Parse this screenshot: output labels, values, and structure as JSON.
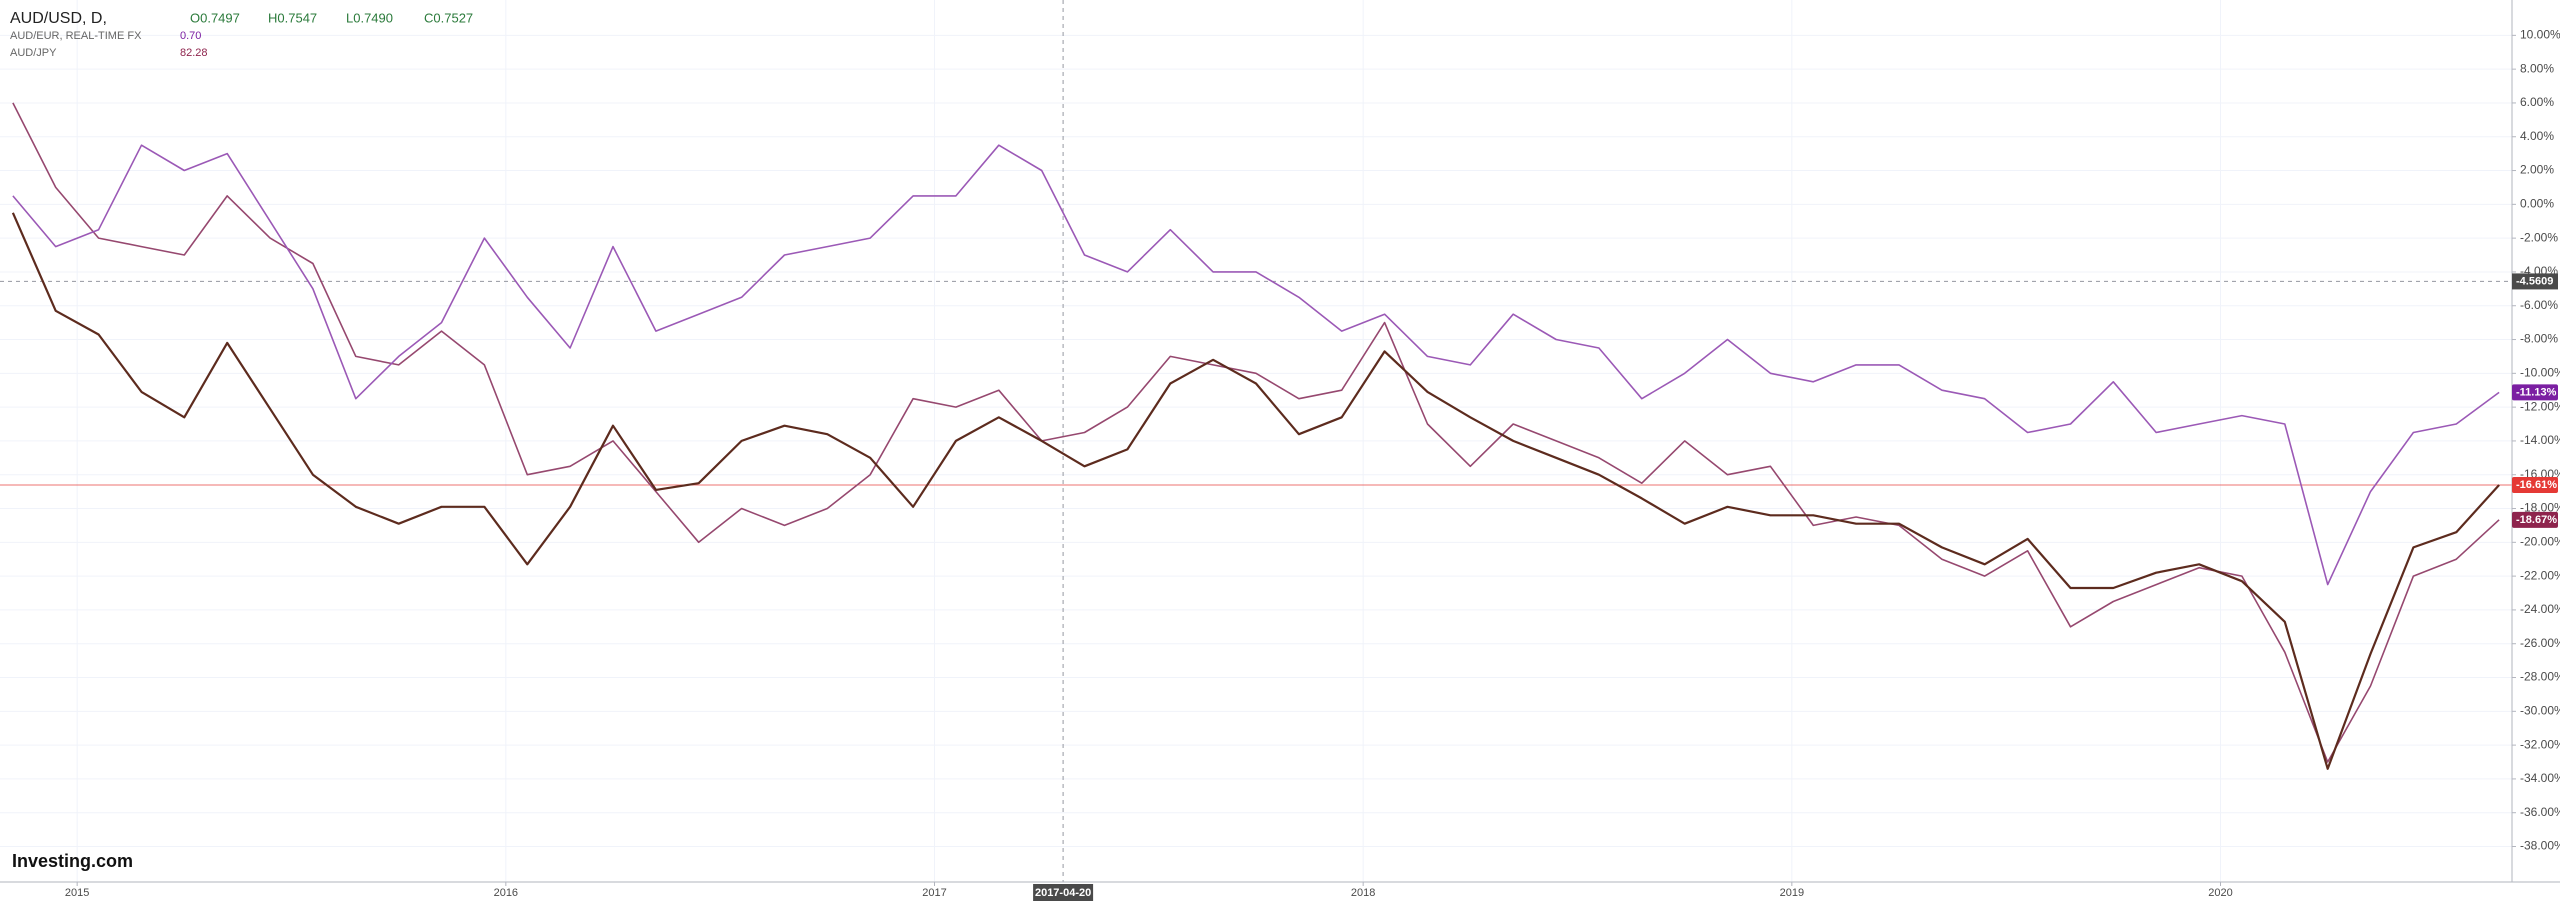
{
  "chart_data": {
    "type": "line",
    "ohlc": [
      "O0.7497",
      "H0.7547",
      "L0.7490",
      "C0.7527"
    ],
    "logo": "Investing.com",
    "x": [
      2014.85,
      2014.95,
      2015.05,
      2015.15,
      2015.25,
      2015.35,
      2015.45,
      2015.55,
      2015.65,
      2015.75,
      2015.85,
      2015.95,
      2016.05,
      2016.15,
      2016.25,
      2016.35,
      2016.45,
      2016.55,
      2016.65,
      2016.75,
      2016.85,
      2016.95,
      2017.05,
      2017.15,
      2017.25,
      2017.35,
      2017.45,
      2017.55,
      2017.65,
      2017.75,
      2017.85,
      2017.95,
      2018.05,
      2018.15,
      2018.25,
      2018.35,
      2018.45,
      2018.55,
      2018.65,
      2018.75,
      2018.85,
      2018.95,
      2019.05,
      2019.15,
      2019.25,
      2019.35,
      2019.45,
      2019.55,
      2019.65,
      2019.75,
      2019.85,
      2019.95,
      2020.05,
      2020.15,
      2020.25,
      2020.35,
      2020.45,
      2020.55,
      2020.65
    ],
    "xlim": [
      2014.82,
      2020.68
    ],
    "xticks": [
      2015,
      2016,
      2017,
      2018,
      2019,
      2020
    ],
    "ylim": [
      -40.1,
      11.5
    ],
    "yticks": [
      {
        "value": 10,
        "label": "10.00%"
      },
      {
        "value": 8,
        "label": "8.00%"
      },
      {
        "value": 6,
        "label": "6.00%"
      },
      {
        "value": 4,
        "label": "4.00%"
      },
      {
        "value": 2,
        "label": "2.00%"
      },
      {
        "value": 0,
        "label": "0.00%"
      },
      {
        "value": -2,
        "label": "-2.00%"
      },
      {
        "value": -4,
        "label": "-4.00%"
      },
      {
        "value": -6,
        "label": "-6.00%"
      },
      {
        "value": -8,
        "label": "-8.00%"
      },
      {
        "value": -10,
        "label": "-10.00%"
      },
      {
        "value": -12,
        "label": "-12.00%"
      },
      {
        "value": -14,
        "label": "-14.00%"
      },
      {
        "value": -16,
        "label": "-16.00%"
      },
      {
        "value": -18,
        "label": "-18.00%"
      },
      {
        "value": -20,
        "label": "-20.00%"
      },
      {
        "value": -22,
        "label": "-22.00%"
      },
      {
        "value": -24,
        "label": "-24.00%"
      },
      {
        "value": -26,
        "label": "-26.00%"
      },
      {
        "value": -28,
        "label": "-28.00%"
      },
      {
        "value": -30,
        "label": "-30.00%"
      },
      {
        "value": -32,
        "label": "-32.00%"
      },
      {
        "value": -34,
        "label": "-34.00%"
      },
      {
        "value": -36,
        "label": "-36.00%"
      },
      {
        "value": -38,
        "label": "-38.00%"
      }
    ],
    "grid": true,
    "price_line_color": "#e53935",
    "series": [
      {
        "name": "AUD/USD, D,",
        "color": "#5d2b1e",
        "badge_color": "#e53935",
        "last_label": "-16.61%",
        "values": [
          -0.5,
          -6.3,
          -7.7,
          -11.1,
          -12.6,
          -8.2,
          -12.1,
          -16,
          -17.9,
          -18.9,
          -17.9,
          -17.9,
          -21.3,
          -17.9,
          -13.1,
          -16.9,
          -16.5,
          -14,
          -13.1,
          -13.6,
          -15,
          -17.9,
          -14,
          -12.6,
          -14,
          -15.5,
          -14.5,
          -10.6,
          -9.2,
          -10.6,
          -13.6,
          -12.6,
          -8.7,
          -11.1,
          -12.6,
          -14,
          -15,
          -16,
          -17.4,
          -18.9,
          -17.9,
          -18.4,
          -18.4,
          -18.9,
          -18.9,
          -20.3,
          -21.3,
          -19.8,
          -22.7,
          -22.7,
          -21.8,
          -21.3,
          -22.3,
          -24.7,
          -33.4,
          -26.6,
          -20.3,
          -19.4,
          -16.61
        ]
      },
      {
        "name": "AUD/EUR, REAL-TIME FX",
        "quote": "0.70",
        "color": "#9b59b6",
        "badge_color": "#7b1fa2",
        "last_label": "-11.13%",
        "values": [
          0.5,
          -2.5,
          -1.5,
          3.5,
          2,
          3,
          -1,
          -5,
          -11.5,
          -9,
          -7,
          -2,
          -5.5,
          -8.5,
          -2.5,
          -7.5,
          -6.5,
          -5.5,
          -3,
          -2.5,
          -2,
          0.5,
          0.5,
          3.5,
          2,
          -3,
          -4,
          -1.5,
          -4,
          -4,
          -5.5,
          -7.5,
          -6.5,
          -9,
          -9.5,
          -6.5,
          -8,
          -8.5,
          -11.5,
          -10,
          -8,
          -10,
          -10.5,
          -9.5,
          -9.5,
          -11,
          -11.5,
          -13.5,
          -13,
          -10.5,
          -13.5,
          -13,
          -12.5,
          -13,
          -22.5,
          -17,
          -13.5,
          -13,
          -11.13
        ]
      },
      {
        "name": "AUD/JPY",
        "quote": "82.28",
        "color": "#96486f",
        "badge_color": "#8e244d",
        "last_label": "-18.67%",
        "values": [
          6,
          1,
          -2,
          -2.5,
          -3,
          0.5,
          -2,
          -3.5,
          -9,
          -9.5,
          -7.5,
          -9.5,
          -16,
          -15.5,
          -14,
          -17,
          -20,
          -18,
          -19,
          -18,
          -16,
          -11.5,
          -12,
          -11,
          -14,
          -13.5,
          -12,
          -9,
          -9.5,
          -10,
          -11.5,
          -11,
          -7,
          -13,
          -15.5,
          -13,
          -14,
          -15,
          -16.5,
          -14,
          -16,
          -15.5,
          -19,
          -18.5,
          -19,
          -21,
          -22,
          -20.5,
          -25,
          -23.5,
          -22.5,
          -21.5,
          -22,
          -26.5,
          -33,
          -28.5,
          -22,
          -21,
          -18.67
        ]
      }
    ],
    "crosshair": {
      "x": {
        "value": 2017.3,
        "label": "2017-04-20"
      },
      "y": -4.5609
    }
  }
}
